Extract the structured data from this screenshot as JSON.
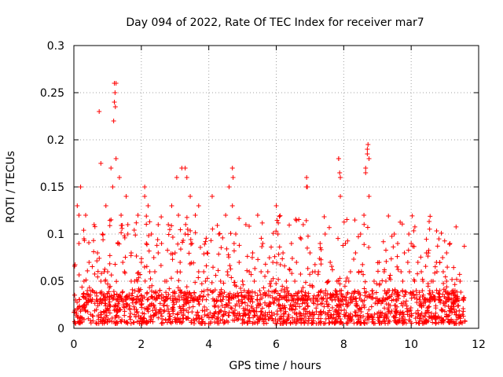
{
  "chart_data": {
    "type": "scatter",
    "title": "Day 094 of 2022, Rate Of TEC Index for receiver mar7",
    "xlabel": "GPS time / hours",
    "ylabel": "ROTI / TECUs",
    "xlim": [
      0,
      12
    ],
    "ylim": [
      0,
      0.3
    ],
    "xticks": [
      "0",
      "2",
      "4",
      "6",
      "8",
      "10",
      "12"
    ],
    "yticks": [
      "0",
      "0.05",
      "0.1",
      "0.15",
      "0.2",
      "0.25",
      "0.3"
    ],
    "grid": true,
    "marker": "+",
    "series": [
      {
        "name": "ROTI",
        "color": "#ff0000",
        "x": [
          0.05,
          0.1,
          0.15,
          0.2,
          0.3,
          0.35,
          0.45,
          0.55,
          0.6,
          0.7,
          0.8,
          0.85,
          0.95,
          1.0,
          1.1,
          1.15,
          1.2,
          1.25,
          1.3,
          1.35,
          1.4,
          1.5,
          1.55,
          1.6,
          1.7,
          1.8,
          1.9,
          2.0,
          2.1,
          2.15,
          2.2,
          2.3,
          2.4,
          2.5,
          2.6,
          2.7,
          2.8,
          2.9,
          3.0,
          3.05,
          3.1,
          3.15,
          3.2,
          3.3,
          3.45,
          3.5,
          3.6,
          3.7,
          3.85,
          3.95,
          4.1,
          4.3,
          4.5,
          4.6,
          4.7,
          4.75,
          4.8,
          4.9,
          5.0,
          5.1,
          5.2,
          5.3,
          5.45,
          5.6,
          5.75,
          5.9,
          6.0,
          6.05,
          6.2,
          6.3,
          6.45,
          6.6,
          6.8,
          6.9,
          7.0,
          7.15,
          7.3,
          7.45,
          7.6,
          7.8,
          7.85,
          7.9,
          8.05,
          8.2,
          8.35,
          8.5,
          8.6,
          8.65,
          8.7,
          8.75,
          8.9,
          9.05,
          9.2,
          9.35,
          9.5,
          9.6,
          9.7,
          9.8,
          9.9,
          10.0,
          10.1,
          10.2,
          10.3,
          10.45,
          10.6,
          10.75,
          10.85,
          10.95,
          11.05,
          11.15,
          11.3,
          11.45,
          11.55,
          1.2,
          1.22,
          1.25,
          1.18,
          1.23,
          0.8,
          0.75,
          2.1,
          3.3,
          3.35,
          4.7,
          4.72,
          6.0,
          6.9,
          6.92,
          7.85,
          7.88,
          7.9,
          8.7,
          8.72,
          8.75,
          8.65,
          2.5,
          1.6,
          0.3,
          0.15,
          0.4,
          0.9,
          1.45,
          1.7,
          2.25,
          2.55,
          2.75,
          3.7,
          3.9,
          4.05,
          4.35,
          4.55,
          5.05,
          5.35,
          5.55,
          5.85,
          6.15,
          6.55,
          6.75,
          7.25,
          7.55,
          7.75,
          8.15,
          8.45,
          8.85,
          9.25,
          9.45,
          9.75,
          9.95,
          10.15,
          10.35,
          10.55,
          10.65,
          10.85,
          11.05,
          11.25,
          11.45
        ],
        "y": [
          0.03,
          0.13,
          0.09,
          0.15,
          0.05,
          0.12,
          0.07,
          0.04,
          0.11,
          0.08,
          0.05,
          0.1,
          0.13,
          0.06,
          0.17,
          0.15,
          0.26,
          0.18,
          0.09,
          0.16,
          0.12,
          0.06,
          0.14,
          0.1,
          0.08,
          0.05,
          0.12,
          0.07,
          0.14,
          0.09,
          0.13,
          0.1,
          0.06,
          0.08,
          0.09,
          0.05,
          0.11,
          0.13,
          0.08,
          0.16,
          0.12,
          0.07,
          0.17,
          0.1,
          0.14,
          0.09,
          0.12,
          0.13,
          0.06,
          0.08,
          0.14,
          0.1,
          0.12,
          0.15,
          0.17,
          0.09,
          0.1,
          0.07,
          0.05,
          0.11,
          0.06,
          0.08,
          0.12,
          0.09,
          0.06,
          0.07,
          0.13,
          0.1,
          0.08,
          0.05,
          0.09,
          0.07,
          0.11,
          0.15,
          0.08,
          0.06,
          0.09,
          0.1,
          0.07,
          0.05,
          0.18,
          0.16,
          0.09,
          0.06,
          0.08,
          0.1,
          0.12,
          0.17,
          0.19,
          0.14,
          0.05,
          0.07,
          0.06,
          0.04,
          0.1,
          0.09,
          0.06,
          0.08,
          0.07,
          0.09,
          0.05,
          0.07,
          0.06,
          0.08,
          0.05,
          0.07,
          0.07,
          0.06,
          0.08,
          0.09,
          0.04,
          0.05,
          0.03,
          0.24,
          0.25,
          0.26,
          0.22,
          0.235,
          0.175,
          0.23,
          0.15,
          0.17,
          0.16,
          0.13,
          0.16,
          0.13,
          0.16,
          0.15,
          0.18,
          0.165,
          0.14,
          0.185,
          0.195,
          0.18,
          0.165,
          0.11,
          0.11,
          0.095,
          0.12,
          0.04,
          0.06,
          0.07,
          0.05,
          0.06,
          0.04,
          0.05,
          0.06,
          0.05,
          0.04,
          0.05,
          0.06,
          0.04,
          0.05,
          0.06,
          0.05,
          0.04,
          0.05,
          0.04,
          0.06,
          0.05,
          0.04,
          0.05,
          0.06,
          0.04,
          0.05,
          0.04,
          0.05,
          0.06,
          0.04,
          0.05,
          0.04,
          0.05,
          0.04,
          0.05,
          0.04,
          0.05
        ]
      }
    ],
    "band": {
      "x_start": 0,
      "x_end": 11.6,
      "y_low": 0.005,
      "y_high": 0.04
    }
  }
}
